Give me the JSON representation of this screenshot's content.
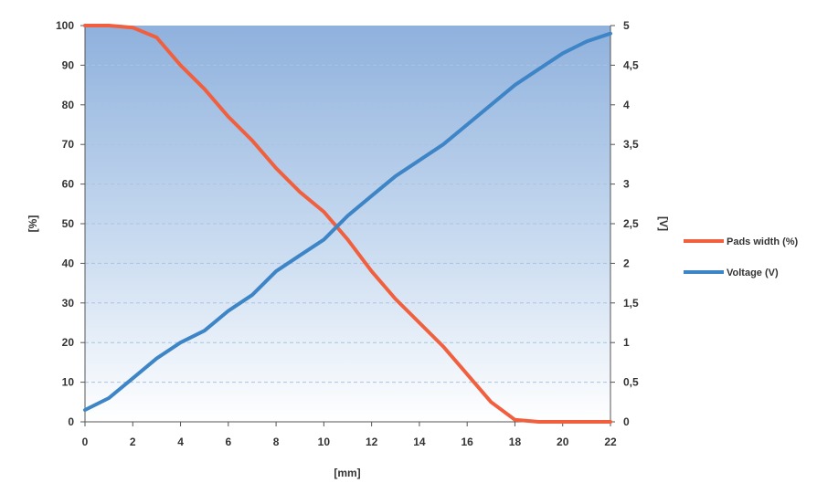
{
  "chart_data": {
    "type": "line",
    "title": "",
    "xlabel": "[mm]",
    "ylabel_left": "[%]",
    "ylabel_right": "[V]",
    "xlim": [
      0,
      22
    ],
    "ylim_left": [
      0,
      100
    ],
    "ylim_right": [
      0,
      5
    ],
    "x_ticks": [
      "0",
      "2",
      "4",
      "6",
      "8",
      "10",
      "12",
      "14",
      "16",
      "18",
      "20",
      "22"
    ],
    "y_left_ticks": [
      "0",
      "10",
      "20",
      "30",
      "40",
      "50",
      "60",
      "70",
      "80",
      "90",
      "100"
    ],
    "y_right_ticks": [
      "0",
      "0,5",
      "1",
      "1,5",
      "2",
      "2,5",
      "3",
      "3,5",
      "4",
      "4,5",
      "5"
    ],
    "grid": "horizontal dashed",
    "legend_position": "right",
    "x": [
      0,
      1,
      2,
      3,
      4,
      5,
      6,
      7,
      8,
      9,
      10,
      11,
      12,
      13,
      14,
      15,
      16,
      17,
      18,
      19,
      20,
      21,
      22
    ],
    "series": [
      {
        "name": "Pads width (%)",
        "axis": "left",
        "color": "#f0603f",
        "values": [
          100,
          100,
          99.5,
          97,
          90,
          84,
          77,
          71,
          64,
          58,
          53,
          46,
          38,
          31,
          25,
          19,
          12,
          5,
          0.5,
          0,
          0,
          0,
          0
        ]
      },
      {
        "name": "Voltage (V)",
        "axis": "right",
        "color": "#3d85c6",
        "values": [
          0.15,
          0.3,
          0.55,
          0.8,
          1.0,
          1.15,
          1.4,
          1.6,
          1.9,
          2.1,
          2.3,
          2.6,
          2.85,
          3.1,
          3.3,
          3.5,
          3.75,
          4.0,
          4.25,
          4.45,
          4.65,
          4.8,
          4.9
        ]
      }
    ]
  }
}
